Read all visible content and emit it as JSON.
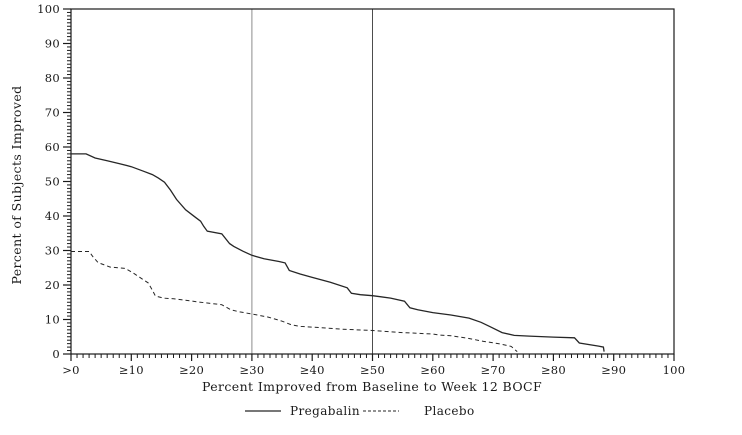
{
  "page": {
    "background": "#ffffff",
    "text_color": "#1a1a1a"
  },
  "chart_data": {
    "type": "line",
    "title": "",
    "xlabel": "Percent Improved from Baseline to Week 12 BOCF",
    "ylabel": "Percent of Subjects Improved",
    "xlim": [
      0,
      100
    ],
    "ylim": [
      0,
      100
    ],
    "grid": false,
    "frame": true,
    "axis_color": "#1a1a1a",
    "x_ticks": [
      {
        "value": 0,
        "label": ">0"
      },
      {
        "value": 10,
        "label": "≥10"
      },
      {
        "value": 20,
        "label": "≥20"
      },
      {
        "value": 30,
        "label": "≥30"
      },
      {
        "value": 40,
        "label": "≥40"
      },
      {
        "value": 50,
        "label": "≥50"
      },
      {
        "value": 60,
        "label": "≥60"
      },
      {
        "value": 70,
        "label": "≥70"
      },
      {
        "value": 80,
        "label": "≥80"
      },
      {
        "value": 90,
        "label": "≥90"
      },
      {
        "value": 100,
        "label": "100"
      }
    ],
    "y_ticks": [
      {
        "value": 0,
        "label": "0"
      },
      {
        "value": 10,
        "label": "10"
      },
      {
        "value": 20,
        "label": "20"
      },
      {
        "value": 30,
        "label": "30"
      },
      {
        "value": 40,
        "label": "40"
      },
      {
        "value": 50,
        "label": "50"
      },
      {
        "value": 60,
        "label": "60"
      },
      {
        "value": 70,
        "label": "70"
      },
      {
        "value": 80,
        "label": "80"
      },
      {
        "value": 90,
        "label": "90"
      },
      {
        "value": 100,
        "label": "100"
      }
    ],
    "x_minor_step": 1,
    "y_minor_step": 1,
    "reference_lines_x": [
      {
        "value": 30,
        "color": "#8c8c8c"
      },
      {
        "value": 50,
        "color": "#4d4d4d"
      }
    ],
    "legend_position": "bottom-center",
    "series": [
      {
        "name": "Pregabalin",
        "line_style": "solid",
        "color": "#262626",
        "points": [
          [
            0,
            58
          ],
          [
            2.5,
            58
          ],
          [
            4,
            56.8
          ],
          [
            6,
            56
          ],
          [
            8,
            55.2
          ],
          [
            10,
            54.3
          ],
          [
            12,
            53
          ],
          [
            13.5,
            52
          ],
          [
            14.5,
            51
          ],
          [
            15.5,
            49.8
          ],
          [
            16.5,
            47.5
          ],
          [
            17.5,
            44.8
          ],
          [
            19,
            41.8
          ],
          [
            20.5,
            39.8
          ],
          [
            21.5,
            38.5
          ],
          [
            22,
            37
          ],
          [
            22.6,
            35.6
          ],
          [
            25,
            34.8
          ],
          [
            26.3,
            32
          ],
          [
            27,
            31.2
          ],
          [
            28.5,
            29.8
          ],
          [
            30,
            28.6
          ],
          [
            32,
            27.6
          ],
          [
            34.5,
            26.8
          ],
          [
            35.5,
            26.4
          ],
          [
            36.2,
            24.2
          ],
          [
            38,
            23.2
          ],
          [
            40,
            22.2
          ],
          [
            43,
            20.8
          ],
          [
            45.8,
            19.2
          ],
          [
            46.5,
            17.6
          ],
          [
            48,
            17.2
          ],
          [
            50,
            16.9
          ],
          [
            53,
            16.2
          ],
          [
            55.3,
            15.3
          ],
          [
            56.2,
            13.4
          ],
          [
            57.5,
            12.8
          ],
          [
            60,
            12
          ],
          [
            63,
            11.3
          ],
          [
            66,
            10.4
          ],
          [
            68,
            9.2
          ],
          [
            69.5,
            7.9
          ],
          [
            71.5,
            6.2
          ],
          [
            73.5,
            5.4
          ],
          [
            76,
            5.2
          ],
          [
            80,
            4.9
          ],
          [
            83.5,
            4.7
          ],
          [
            84.3,
            3.2
          ],
          [
            87.5,
            2.3
          ],
          [
            88.3,
            2
          ],
          [
            88.4,
            0.7
          ]
        ]
      },
      {
        "name": "Placebo",
        "line_style": "dashed",
        "color": "#262626",
        "points": [
          [
            0,
            29.7
          ],
          [
            3,
            29.7
          ],
          [
            3.6,
            28.3
          ],
          [
            4.5,
            26.5
          ],
          [
            6.5,
            25.2
          ],
          [
            9,
            24.8
          ],
          [
            10.3,
            23.5
          ],
          [
            12,
            21.5
          ],
          [
            12.8,
            20.6
          ],
          [
            13.5,
            18.5
          ],
          [
            14,
            16.8
          ],
          [
            15.3,
            16.2
          ],
          [
            17,
            16
          ],
          [
            19,
            15.6
          ],
          [
            21,
            15.1
          ],
          [
            25,
            14.3
          ],
          [
            26.5,
            12.8
          ],
          [
            28,
            12.2
          ],
          [
            30,
            11.6
          ],
          [
            32.7,
            10.7
          ],
          [
            35,
            9.5
          ],
          [
            36.5,
            8.5
          ],
          [
            38,
            8
          ],
          [
            40,
            7.8
          ],
          [
            45,
            7.2
          ],
          [
            50,
            6.8
          ],
          [
            55,
            6.2
          ],
          [
            60,
            5.8
          ],
          [
            61,
            5.5
          ],
          [
            63,
            5.3
          ],
          [
            66,
            4.5
          ],
          [
            68.3,
            3.7
          ],
          [
            71.2,
            2.9
          ],
          [
            73,
            2.2
          ],
          [
            74,
            0.7
          ]
        ]
      }
    ]
  }
}
